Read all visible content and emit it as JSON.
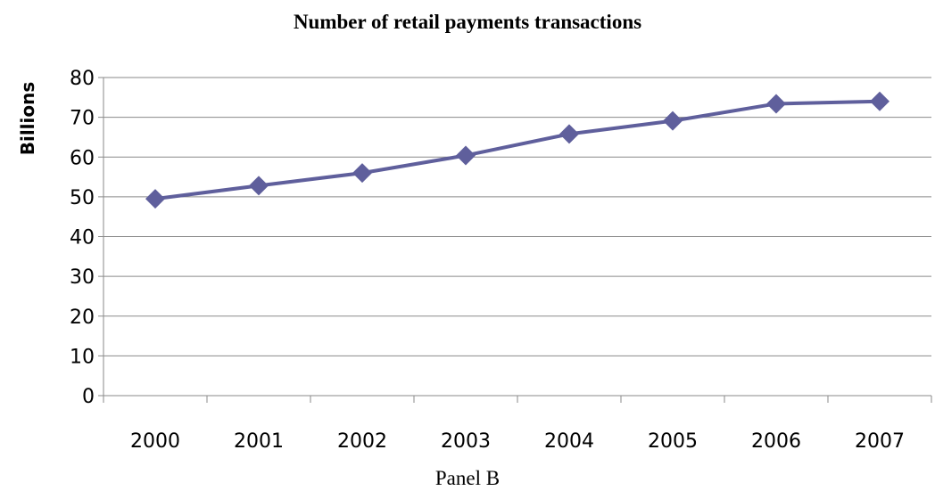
{
  "caption": "Panel B",
  "chart_data": {
    "type": "line",
    "title": "Number of retail payments transactions",
    "xlabel": "",
    "ylabel": "Billions",
    "categories": [
      "2000",
      "2001",
      "2002",
      "2003",
      "2004",
      "2005",
      "2006",
      "2007"
    ],
    "series": [
      {
        "values": [
          49.5,
          52.8,
          56.0,
          60.4,
          65.8,
          69.1,
          73.4,
          74.0
        ],
        "color": "#5f5f9c",
        "marker": "diamond"
      }
    ],
    "ylim": [
      0,
      80
    ],
    "yticks": [
      0,
      10,
      20,
      30,
      40,
      50,
      60,
      70,
      80
    ],
    "grid": true
  }
}
